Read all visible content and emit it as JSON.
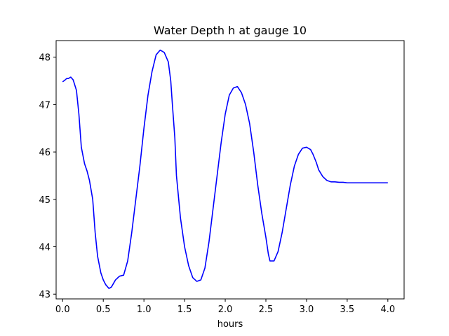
{
  "chart_data": {
    "type": "line",
    "title": "Water Depth h at gauge 10",
    "xlabel": "hours",
    "ylabel": "",
    "xlim": [
      -0.08,
      4.2
    ],
    "ylim": [
      42.9,
      48.35
    ],
    "xticks": [
      0.0,
      0.5,
      1.0,
      1.5,
      2.0,
      2.5,
      3.0,
      3.5,
      4.0
    ],
    "xtick_labels": [
      "0.0",
      "0.5",
      "1.0",
      "1.5",
      "2.0",
      "2.5",
      "3.0",
      "3.5",
      "4.0"
    ],
    "yticks": [
      43,
      44,
      45,
      46,
      47,
      48
    ],
    "ytick_labels": [
      "43",
      "44",
      "45",
      "46",
      "47",
      "48"
    ],
    "grid": false,
    "series": [
      {
        "color": "#0000ff",
        "x": [
          0.0,
          0.03,
          0.05,
          0.07,
          0.1,
          0.13,
          0.17,
          0.2,
          0.23,
          0.27,
          0.3,
          0.33,
          0.37,
          0.4,
          0.43,
          0.47,
          0.5,
          0.53,
          0.57,
          0.6,
          0.65,
          0.7,
          0.75,
          0.8,
          0.85,
          0.9,
          0.95,
          1.0,
          1.05,
          1.1,
          1.15,
          1.2,
          1.25,
          1.3,
          1.33,
          1.35,
          1.38,
          1.4,
          1.45,
          1.5,
          1.55,
          1.6,
          1.65,
          1.7,
          1.75,
          1.8,
          1.85,
          1.9,
          1.95,
          2.0,
          2.05,
          2.1,
          2.15,
          2.2,
          2.25,
          2.3,
          2.35,
          2.4,
          2.45,
          2.5,
          2.53,
          2.55,
          2.6,
          2.65,
          2.7,
          2.75,
          2.8,
          2.85,
          2.9,
          2.95,
          3.0,
          3.05,
          3.08,
          3.12,
          3.15,
          3.2,
          3.25,
          3.3,
          3.35,
          3.4,
          3.45,
          3.5,
          3.55,
          3.6,
          3.65,
          3.7,
          3.75,
          3.8,
          3.85,
          3.9,
          3.95,
          4.0
        ],
        "y": [
          47.48,
          47.52,
          47.55,
          47.55,
          47.58,
          47.52,
          47.3,
          46.8,
          46.1,
          45.75,
          45.6,
          45.4,
          45.0,
          44.3,
          43.8,
          43.45,
          43.3,
          43.2,
          43.12,
          43.15,
          43.3,
          43.38,
          43.4,
          43.7,
          44.3,
          45.0,
          45.7,
          46.5,
          47.2,
          47.7,
          48.05,
          48.15,
          48.1,
          47.9,
          47.5,
          47.0,
          46.3,
          45.5,
          44.6,
          44.0,
          43.6,
          43.35,
          43.27,
          43.3,
          43.55,
          44.1,
          44.8,
          45.5,
          46.2,
          46.8,
          47.2,
          47.35,
          47.38,
          47.25,
          47.0,
          46.6,
          46.0,
          45.3,
          44.7,
          44.2,
          43.85,
          43.7,
          43.7,
          43.9,
          44.3,
          44.8,
          45.3,
          45.7,
          45.95,
          46.08,
          46.1,
          46.05,
          45.95,
          45.78,
          45.62,
          45.48,
          45.4,
          45.37,
          45.37,
          45.36,
          45.36,
          45.35,
          45.35,
          45.35,
          45.35,
          45.35,
          45.35,
          45.35,
          45.35,
          45.35,
          45.35,
          45.35
        ]
      }
    ]
  }
}
